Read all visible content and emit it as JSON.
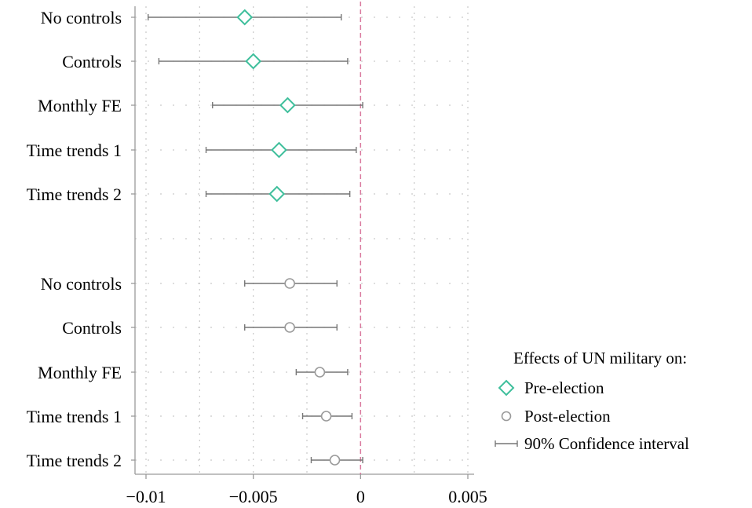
{
  "chart_data": {
    "type": "scatter",
    "subtype": "coefficient-plot",
    "title": "",
    "xlabel": "",
    "ylabel": "",
    "xlim": [
      -0.0105,
      0.005
    ],
    "xticks": [
      -0.01,
      -0.005,
      0,
      0.005
    ],
    "xtick_labels": [
      "−0.01",
      "−0.005",
      "0",
      "0.005"
    ],
    "reference_line_x": 0,
    "reference_line_color": "#d9799e",
    "grid": "dotted",
    "legend": {
      "position": "bottom-right",
      "title": "Effects of UN military on:",
      "entries": [
        {
          "label": "Pre-election",
          "symbol": "diamond",
          "color": "#3fbf9c"
        },
        {
          "label": "Post-election",
          "symbol": "circle",
          "color": "#9a9a9a"
        },
        {
          "label": "90% Confidence interval",
          "symbol": "capped-line",
          "color": "#777777"
        }
      ]
    },
    "series": [
      {
        "name": "Pre-election",
        "marker": "diamond",
        "color": "#3fbf9c",
        "points": [
          {
            "label": "No controls",
            "estimate": -0.0054,
            "ci_low": -0.0099,
            "ci_high": -0.0009
          },
          {
            "label": "Controls",
            "estimate": -0.005,
            "ci_low": -0.0094,
            "ci_high": -0.0006
          },
          {
            "label": "Monthly FE",
            "estimate": -0.0034,
            "ci_low": -0.0069,
            "ci_high": 0.0001
          },
          {
            "label": "Time trends 1",
            "estimate": -0.0038,
            "ci_low": -0.0072,
            "ci_high": -0.0002
          },
          {
            "label": "Time trends 2",
            "estimate": -0.0039,
            "ci_low": -0.0072,
            "ci_high": -0.0005
          }
        ]
      },
      {
        "name": "Post-election",
        "marker": "circle",
        "color": "#9a9a9a",
        "points": [
          {
            "label": "No controls",
            "estimate": -0.0033,
            "ci_low": -0.0054,
            "ci_high": -0.0011
          },
          {
            "label": "Controls",
            "estimate": -0.0033,
            "ci_low": -0.0054,
            "ci_high": -0.0011
          },
          {
            "label": "Monthly FE",
            "estimate": -0.0019,
            "ci_low": -0.003,
            "ci_high": -0.0006
          },
          {
            "label": "Time trends 1",
            "estimate": -0.0016,
            "ci_low": -0.0027,
            "ci_high": -0.0004
          },
          {
            "label": "Time trends 2",
            "estimate": -0.0012,
            "ci_low": -0.0023,
            "ci_high": 0.0001
          }
        ]
      }
    ]
  }
}
